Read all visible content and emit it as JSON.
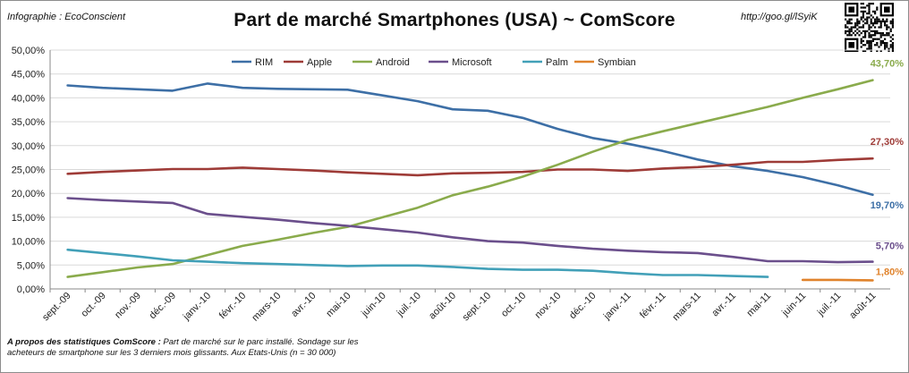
{
  "header": {
    "credit": "Infographie : EcoConscient",
    "url": "http://goo.gl/lSyiK"
  },
  "footnote": {
    "bold": "A propos des statistiques ComScore :",
    "text": " Part de marché sur le parc installé. Sondage sur les acheteurs de smartphone sur les 3 derniers mois glissants. Aux Etats-Unis (n = 30 000)"
  },
  "qr_icon": "qr-code-icon",
  "chart_data": {
    "type": "line",
    "title": "Part de marché Smartphones (USA) ~ ComScore",
    "ylim": [
      0,
      50
    ],
    "yticks": [
      "0,00%",
      "5,00%",
      "10,00%",
      "15,00%",
      "20,00%",
      "25,00%",
      "30,00%",
      "35,00%",
      "40,00%",
      "45,00%",
      "50,00%"
    ],
    "grid": true,
    "legend_position": "top",
    "categories": [
      "sept.-09",
      "oct.-09",
      "nov.-09",
      "déc.-09",
      "janv.-10",
      "févr.-10",
      "mars-10",
      "avr.-10",
      "mai-10",
      "juin-10",
      "juil.-10",
      "août-10",
      "sept.-10",
      "oct.-10",
      "nov.-10",
      "déc.-10",
      "janv.-11",
      "févr.-11",
      "mars-11",
      "avr.-11",
      "mai-11",
      "juin-11",
      "juil.-11",
      "août-11"
    ],
    "series": [
      {
        "name": "RIM",
        "color": "#3d6fa6",
        "end_label": "19,70%",
        "values": [
          42.6,
          42.1,
          41.8,
          41.5,
          43.0,
          42.1,
          41.9,
          41.8,
          41.7,
          40.5,
          39.3,
          37.6,
          37.3,
          35.8,
          33.5,
          31.6,
          30.4,
          28.9,
          27.1,
          25.7,
          24.7,
          23.4,
          21.7,
          19.7
        ]
      },
      {
        "name": "Apple",
        "color": "#9e3b37",
        "end_label": "27,30%",
        "values": [
          24.1,
          24.5,
          24.8,
          25.1,
          25.1,
          25.4,
          25.1,
          24.8,
          24.4,
          24.1,
          23.8,
          24.2,
          24.3,
          24.5,
          25.0,
          25.0,
          24.7,
          25.2,
          25.5,
          26.0,
          26.6,
          26.6,
          27.0,
          27.3
        ]
      },
      {
        "name": "Android",
        "color": "#8aab4c",
        "end_label": "43,70%",
        "values": [
          2.5,
          3.5,
          4.5,
          5.2,
          7.1,
          9.0,
          10.3,
          11.7,
          13.0,
          15.0,
          17.0,
          19.6,
          21.4,
          23.5,
          26.0,
          28.7,
          31.2,
          33.0,
          34.7,
          36.4,
          38.1,
          40.0,
          41.8,
          43.7
        ]
      },
      {
        "name": "Microsoft",
        "color": "#6b4f8c",
        "end_label": "5,70%",
        "values": [
          19.0,
          18.6,
          18.3,
          18.0,
          15.7,
          15.1,
          14.5,
          13.8,
          13.2,
          12.5,
          11.8,
          10.8,
          10.0,
          9.7,
          9.0,
          8.4,
          8.0,
          7.7,
          7.5,
          6.7,
          5.8,
          5.8,
          5.6,
          5.7
        ]
      },
      {
        "name": "Palm",
        "color": "#42a0b8",
        "end_label": "",
        "values": [
          8.2,
          7.5,
          6.8,
          6.0,
          5.7,
          5.4,
          5.2,
          5.0,
          4.8,
          4.9,
          4.9,
          4.6,
          4.2,
          4.0,
          4.0,
          3.8,
          3.3,
          2.9,
          2.9,
          2.7,
          2.5,
          null,
          null,
          null
        ]
      },
      {
        "name": "Symbian",
        "color": "#e0832c",
        "end_label": "1,80%",
        "values": [
          null,
          null,
          null,
          null,
          null,
          null,
          null,
          null,
          null,
          null,
          null,
          null,
          null,
          null,
          null,
          null,
          null,
          null,
          null,
          null,
          null,
          1.9,
          1.9,
          1.8
        ]
      }
    ]
  }
}
